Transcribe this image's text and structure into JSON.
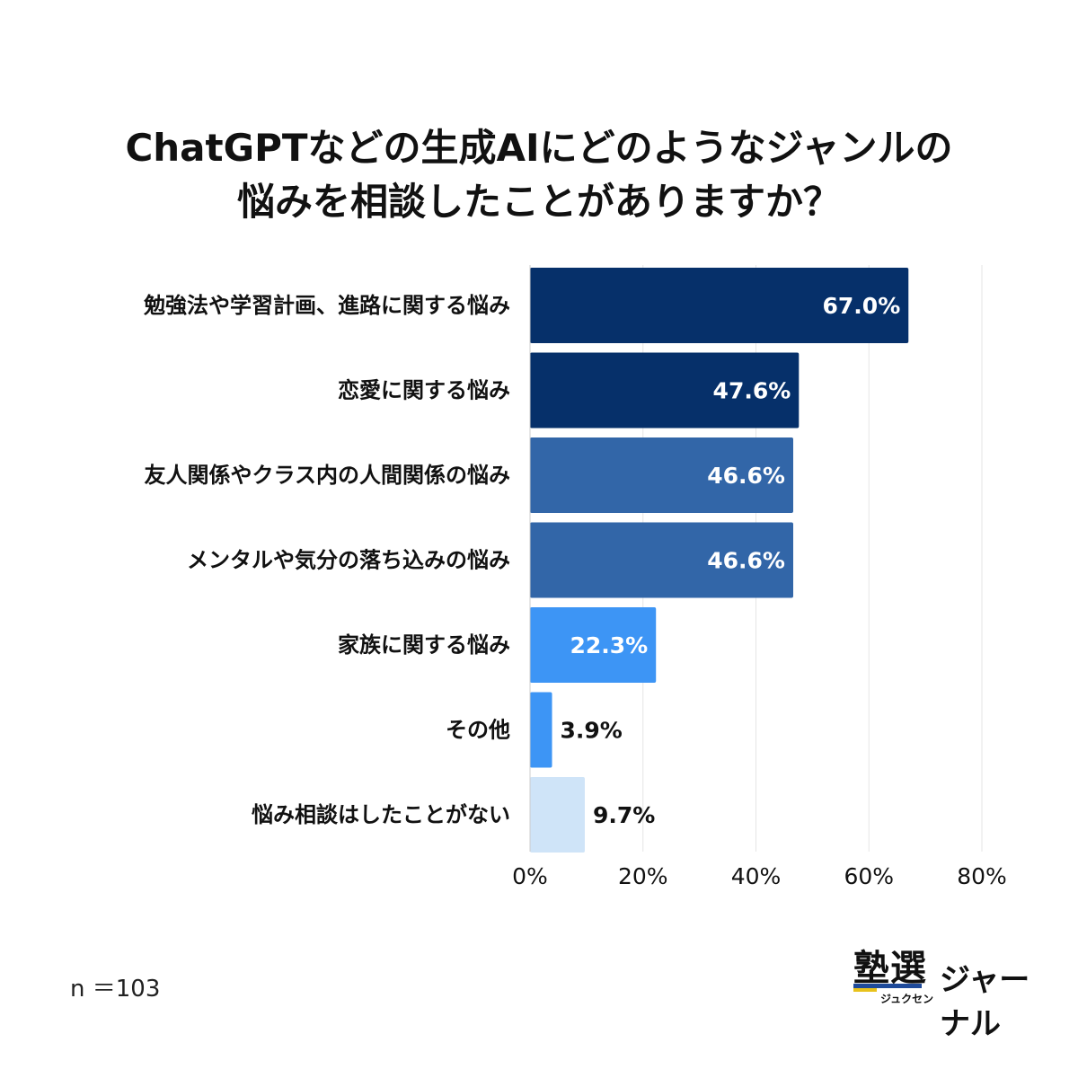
{
  "chart_data": {
    "type": "bar",
    "orientation": "horizontal",
    "title_lines": [
      "ChatGPTなどの生成AIにどのようなジャンルの",
      "悩みを相談したことがありますか？"
    ],
    "categories": [
      "勉強法や学習計画、進路に関する悩み",
      "恋愛に関する悩み",
      "友人関係やクラス内の人間関係の悩み",
      "メンタルや気分の落ち込みの悩み",
      "家族に関する悩み",
      "その他",
      "悩み相談はしたことがない"
    ],
    "values": [
      67.0,
      47.6,
      46.6,
      46.6,
      22.3,
      3.9,
      9.7
    ],
    "value_labels": [
      "67.0%",
      "47.6%",
      "46.6%",
      "46.6%",
      "22.3%",
      "3.9%",
      "9.7%"
    ],
    "bar_colors": [
      "#06306a",
      "#06306a",
      "#3266a8",
      "#3266a8",
      "#3d95f5",
      "#3d95f5",
      "#cfe4f8"
    ],
    "value_label_colors": [
      "#ffffff",
      "#ffffff",
      "#ffffff",
      "#ffffff",
      "#ffffff",
      "#111111",
      "#111111"
    ],
    "value_label_inside": [
      true,
      true,
      true,
      true,
      true,
      false,
      false
    ],
    "xlim": [
      0,
      80
    ],
    "xticks": [
      0,
      20,
      40,
      60,
      80
    ],
    "xtick_labels": [
      "0%",
      "20%",
      "40%",
      "60%",
      "80%"
    ],
    "grid": "vertical",
    "xlabel": "",
    "ylabel": ""
  },
  "footer": {
    "sample_note": "n ＝103"
  },
  "logo": {
    "main": "塾選",
    "ruby": "ジュクセン",
    "sub": "ジャーナル"
  }
}
